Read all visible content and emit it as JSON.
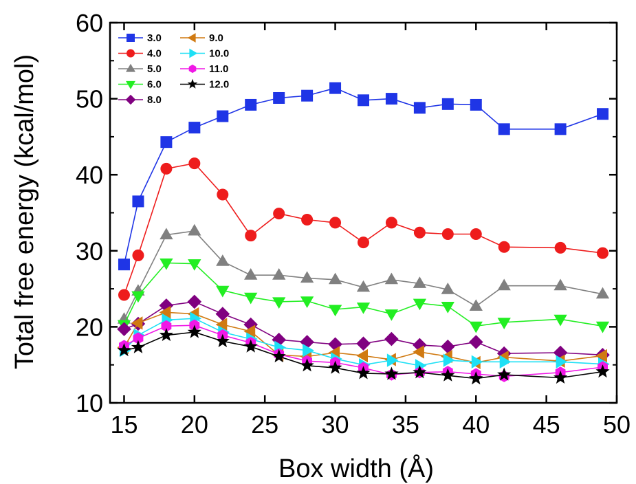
{
  "chart_data": {
    "type": "line",
    "xlabel": "Box width (Å)",
    "ylabel": "Total free energy (kcal/mol)",
    "xlim": [
      14,
      50
    ],
    "ylim": [
      10,
      60
    ],
    "xticks": [
      "15",
      "20",
      "25",
      "30",
      "35",
      "40",
      "45",
      "50"
    ],
    "yticks": [
      "10",
      "20",
      "30",
      "40",
      "50",
      "60"
    ],
    "grid": false,
    "legend_position": "top-left, two columns",
    "series": [
      {
        "name": "3.0",
        "color": "#1f35e6",
        "marker": "square",
        "x": [
          15,
          16,
          18,
          20,
          22,
          24,
          26,
          28,
          30,
          32,
          34,
          36,
          38,
          40,
          42,
          46,
          49
        ],
        "y": [
          28.2,
          36.5,
          44.3,
          46.2,
          47.7,
          49.2,
          50.1,
          50.4,
          51.4,
          49.8,
          50.0,
          48.8,
          49.3,
          49.2,
          46.0,
          46.0,
          48.0
        ]
      },
      {
        "name": "4.0",
        "color": "#ee1c1c",
        "marker": "circle",
        "x": [
          15,
          16,
          18,
          20,
          22,
          24,
          26,
          28,
          30,
          32,
          34,
          36,
          38,
          40,
          42,
          46,
          49
        ],
        "y": [
          24.2,
          29.4,
          40.8,
          41.5,
          37.4,
          32.0,
          34.9,
          34.1,
          33.7,
          31.1,
          33.7,
          32.4,
          32.2,
          32.2,
          30.5,
          30.4,
          29.7
        ]
      },
      {
        "name": "5.0",
        "color": "#808080",
        "marker": "triangle-up",
        "x": [
          15,
          16,
          18,
          20,
          22,
          24,
          26,
          28,
          30,
          32,
          34,
          36,
          38,
          40,
          42,
          46,
          49
        ],
        "y": [
          21.0,
          24.7,
          32.1,
          32.6,
          28.6,
          26.8,
          26.8,
          26.4,
          26.2,
          25.2,
          26.2,
          25.7,
          24.9,
          22.7,
          25.4,
          25.4,
          24.3
        ]
      },
      {
        "name": "6.0",
        "color": "#22ee22",
        "marker": "triangle-down",
        "x": [
          15,
          16,
          18,
          20,
          22,
          24,
          26,
          28,
          30,
          32,
          34,
          36,
          38,
          40,
          42,
          46,
          49
        ],
        "y": [
          20.3,
          24.1,
          28.4,
          28.3,
          24.8,
          23.9,
          23.3,
          23.4,
          22.3,
          22.6,
          21.7,
          23.1,
          22.7,
          20.1,
          20.6,
          21.0,
          20.1
        ]
      },
      {
        "name": "8.0",
        "color": "#800080",
        "marker": "diamond",
        "x": [
          15,
          16,
          18,
          20,
          22,
          24,
          26,
          28,
          30,
          32,
          34,
          36,
          38,
          40,
          42,
          46,
          49
        ],
        "y": [
          19.7,
          20.4,
          22.8,
          23.3,
          21.7,
          20.3,
          18.3,
          18.0,
          17.7,
          17.8,
          18.4,
          17.6,
          17.4,
          18.0,
          16.5,
          16.6,
          16.3
        ]
      },
      {
        "name": "9.0",
        "color": "#d07a12",
        "marker": "triangle-left",
        "x": [
          15,
          16,
          18,
          20,
          22,
          24,
          26,
          28,
          30,
          32,
          34,
          36,
          38,
          40,
          42,
          46,
          49
        ],
        "y": [
          17.3,
          20.5,
          21.9,
          21.7,
          20.3,
          19.4,
          16.3,
          16.1,
          16.6,
          16.2,
          15.7,
          16.7,
          16.1,
          15.3,
          16.0,
          15.5,
          16.2
        ]
      },
      {
        "name": "10.0",
        "color": "#1ee0f5",
        "marker": "triangle-right",
        "x": [
          15,
          16,
          18,
          20,
          22,
          24,
          26,
          28,
          30,
          32,
          34,
          36,
          38,
          40,
          42,
          46,
          49
        ],
        "y": [
          16.9,
          18.9,
          20.9,
          21.1,
          19.3,
          18.4,
          17.3,
          16.9,
          15.8,
          15.0,
          15.6,
          14.9,
          15.6,
          15.4,
          15.4,
          15.4,
          15.1
        ]
      },
      {
        "name": "11.0",
        "color": "#f018e6",
        "marker": "hexagon",
        "x": [
          15,
          16,
          18,
          20,
          22,
          24,
          26,
          28,
          30,
          32,
          34,
          36,
          38,
          40,
          42,
          46,
          49
        ],
        "y": [
          17.5,
          18.5,
          20.1,
          20.2,
          18.9,
          17.9,
          16.4,
          15.5,
          15.3,
          14.6,
          13.7,
          14.0,
          14.1,
          13.8,
          13.5,
          14.0,
          14.7
        ]
      },
      {
        "name": "12.0",
        "color": "#000000",
        "marker": "star",
        "x": [
          15,
          16,
          18,
          20,
          22,
          24,
          26,
          28,
          30,
          32,
          34,
          36,
          38,
          40,
          42,
          46,
          49
        ],
        "y": [
          16.9,
          17.3,
          18.9,
          19.3,
          18.1,
          17.4,
          16.1,
          14.9,
          14.6,
          13.9,
          13.8,
          14.0,
          13.6,
          13.2,
          13.7,
          13.3,
          14.1
        ]
      }
    ]
  }
}
